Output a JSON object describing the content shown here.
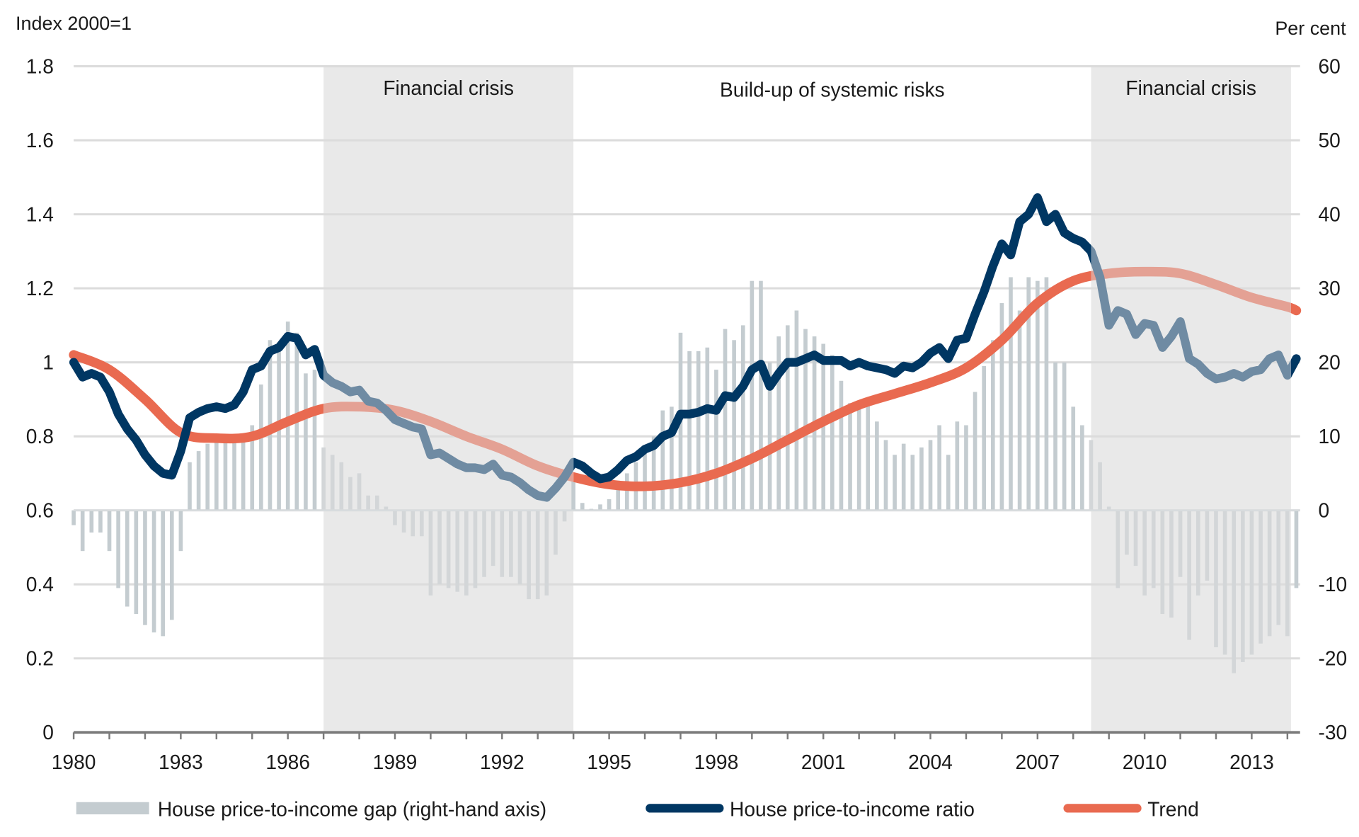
{
  "chart_data": {
    "type": "bar+line",
    "left_axis_label": "Index 2000=1",
    "right_axis_label": "Per cent",
    "left_ylim": [
      0,
      1.8
    ],
    "right_ylim": [
      -30,
      60
    ],
    "left_ticks": [
      "0",
      "0.2",
      "0.4",
      "0.6",
      "0.8",
      "1",
      "1.2",
      "1.4",
      "1.6",
      "1.8"
    ],
    "right_ticks": [
      "-30",
      "-20",
      "-10",
      "0",
      "10",
      "20",
      "30",
      "40",
      "50",
      "60"
    ],
    "x_ticks": [
      "1980",
      "1983",
      "1986",
      "1989",
      "1992",
      "1995",
      "1998",
      "2001",
      "2004",
      "2007",
      "2010",
      "2013"
    ],
    "xlim": [
      1980,
      2014.5
    ],
    "grid": true,
    "frequency": "quarterly",
    "x_start": 1980,
    "shaded_periods": [
      {
        "label": "Financial crisis",
        "from": 1987.0,
        "to": 1994.0,
        "shaded": true
      },
      {
        "label": "Build-up of systemic risks",
        "from": 1994.0,
        "to": 2008.5,
        "shaded": false
      },
      {
        "label": "Financial crisis",
        "from": 2008.5,
        "to": 2014.1,
        "shaded": true
      }
    ],
    "colors": {
      "gap": "#c4ccd0",
      "gap_shaded": "#d3d6d8",
      "ratio": "#003763",
      "ratio_shaded": "#6f8ba3",
      "trend": "#e96a50",
      "trend_shaded": "#e4a194",
      "shade": "#e9e9e9",
      "grid": "#dcdcdc"
    },
    "legend": [
      {
        "label": "House price-to-income gap (right-hand axis)",
        "kind": "bar"
      },
      {
        "label": "House price-to-income ratio",
        "kind": "line-ratio"
      },
      {
        "label": "Trend",
        "kind": "line-trend"
      }
    ],
    "series": [
      {
        "name": "House price-to-income gap (right-hand axis)",
        "axis": "right",
        "type": "bar",
        "values": [
          -2,
          -5.5,
          -3,
          -3,
          -5.5,
          -10.5,
          -13,
          -14,
          -15.5,
          -16.5,
          -17,
          -14.8,
          -5.5,
          6.5,
          8,
          9,
          9.5,
          9.5,
          9.5,
          10,
          11.5,
          17,
          23,
          22,
          25.5,
          24,
          18.5,
          19,
          8.5,
          7.5,
          6.5,
          4.5,
          5,
          2,
          2,
          0.5,
          -2,
          -3,
          -3.5,
          -3.5,
          -11.5,
          -10,
          -10.5,
          -11,
          -11.5,
          -10.5,
          -9,
          -7.5,
          -9,
          -9,
          -10,
          -12,
          -12,
          -11.5,
          -6,
          -1.5,
          4,
          1,
          0.2,
          0.8,
          1.5,
          4,
          5,
          6.5,
          8.5,
          10,
          13.5,
          14,
          24,
          21.5,
          21.5,
          22,
          19,
          24.5,
          23,
          25,
          31,
          31,
          20,
          23.5,
          25,
          27,
          24.5,
          23.5,
          22.5,
          21,
          17.5,
          14.5,
          14.5,
          15,
          12,
          9.5,
          7.5,
          9,
          7.5,
          8.5,
          9.5,
          11.5,
          7.5,
          12,
          11.5,
          16,
          19.5,
          23,
          28,
          31.5,
          27,
          31.5,
          31,
          31.5,
          20,
          20,
          14,
          11.5,
          9.5,
          6.5,
          0.5,
          -10.5,
          -6,
          -7.5,
          -11.5,
          -10.5,
          -14,
          -14.5,
          -9,
          -17.5,
          -11.5,
          -9.5,
          -18.5,
          -19.5,
          -22,
          -20.5,
          -19.5,
          -18,
          -17,
          -15.5,
          -17,
          -10.5
        ]
      },
      {
        "name": "House price-to-income ratio",
        "axis": "left",
        "type": "line",
        "values": [
          1.0,
          0.96,
          0.97,
          0.96,
          0.92,
          0.86,
          0.82,
          0.79,
          0.75,
          0.72,
          0.7,
          0.695,
          0.76,
          0.85,
          0.865,
          0.875,
          0.88,
          0.875,
          0.885,
          0.92,
          0.98,
          0.99,
          1.03,
          1.04,
          1.07,
          1.065,
          1.02,
          1.035,
          0.965,
          0.945,
          0.935,
          0.92,
          0.925,
          0.895,
          0.89,
          0.87,
          0.845,
          0.835,
          0.825,
          0.82,
          0.75,
          0.755,
          0.74,
          0.725,
          0.715,
          0.715,
          0.71,
          0.725,
          0.695,
          0.69,
          0.675,
          0.655,
          0.64,
          0.635,
          0.66,
          0.69,
          0.73,
          0.72,
          0.7,
          0.685,
          0.69,
          0.71,
          0.735,
          0.745,
          0.765,
          0.775,
          0.8,
          0.81,
          0.86,
          0.86,
          0.865,
          0.875,
          0.87,
          0.91,
          0.905,
          0.935,
          0.98,
          0.995,
          0.935,
          0.97,
          1.0,
          1.0,
          1.01,
          1.02,
          1.005,
          1.005,
          1.005,
          0.99,
          1.0,
          0.99,
          0.985,
          0.98,
          0.97,
          0.99,
          0.985,
          1.0,
          1.025,
          1.04,
          1.01,
          1.06,
          1.065,
          1.13,
          1.19,
          1.26,
          1.32,
          1.29,
          1.38,
          1.4,
          1.445,
          1.38,
          1.4,
          1.35,
          1.335,
          1.325,
          1.3,
          1.23,
          1.1,
          1.14,
          1.13,
          1.075,
          1.105,
          1.1,
          1.04,
          1.07,
          1.11,
          1.01,
          0.995,
          0.97,
          0.955,
          0.96,
          0.97,
          0.96,
          0.975,
          0.98,
          1.01,
          1.02,
          0.965,
          1.01
        ]
      },
      {
        "name": "Trend",
        "axis": "left",
        "type": "line",
        "x": [
          1980,
          1981,
          1982,
          1983,
          1984,
          1985,
          1986,
          1987,
          1988,
          1989,
          1990,
          1991,
          1992,
          1993,
          1994,
          1995,
          1996,
          1997,
          1998,
          1999,
          2000,
          2001,
          2002,
          2003,
          2004,
          2005,
          2006,
          2007,
          2008,
          2009,
          2010,
          2011,
          2012,
          2013,
          2014,
          2014.25
        ],
        "values": [
          1.02,
          0.98,
          0.9,
          0.81,
          0.795,
          0.8,
          0.84,
          0.875,
          0.88,
          0.87,
          0.84,
          0.8,
          0.765,
          0.72,
          0.69,
          0.67,
          0.665,
          0.675,
          0.7,
          0.74,
          0.79,
          0.84,
          0.885,
          0.915,
          0.945,
          0.985,
          1.06,
          1.16,
          1.22,
          1.24,
          1.245,
          1.24,
          1.21,
          1.175,
          1.15,
          1.14
        ]
      }
    ]
  }
}
